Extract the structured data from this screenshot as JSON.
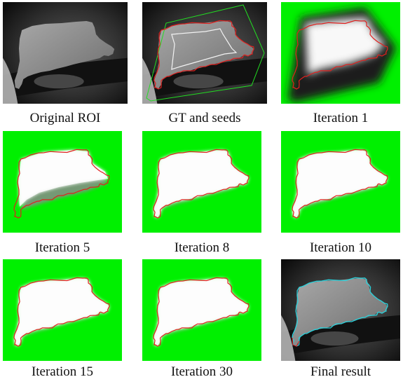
{
  "figure": {
    "panels": [
      {
        "id": "original-roi",
        "caption": "Original ROI",
        "kind": "mri"
      },
      {
        "id": "gt-and-seeds",
        "caption": "GT and seeds",
        "kind": "mri-seeds"
      },
      {
        "id": "iteration-1",
        "caption": "Iteration 1",
        "kind": "prob",
        "stage": 1
      },
      {
        "id": "iteration-5",
        "caption": "Iteration 5",
        "kind": "prob",
        "stage": 5
      },
      {
        "id": "iteration-8",
        "caption": "Iteration 8",
        "kind": "prob",
        "stage": 8
      },
      {
        "id": "iteration-10",
        "caption": "Iteration 10",
        "kind": "prob",
        "stage": 10
      },
      {
        "id": "iteration-15",
        "caption": "Iteration 15",
        "kind": "prob",
        "stage": 15
      },
      {
        "id": "iteration-30",
        "caption": "Iteration 30",
        "kind": "prob",
        "stage": 30
      },
      {
        "id": "final-result",
        "caption": "Final result",
        "kind": "mri-final"
      }
    ],
    "colors": {
      "background_green": "#00f000",
      "gt_contour": "#e0201e",
      "seed_outer": "#22dd22",
      "seed_inner": "#f2f2f2",
      "final_contour": "#29d3dd"
    }
  }
}
